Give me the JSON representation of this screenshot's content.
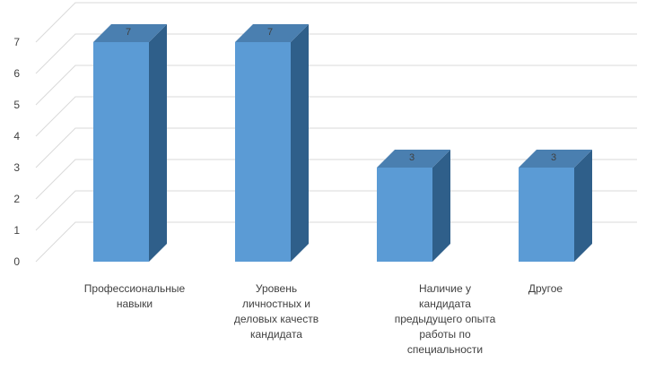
{
  "chart_data": {
    "type": "bar",
    "style": "3d-column",
    "categories": [
      [
        "Профессиональные",
        "навыки"
      ],
      [
        "Уровень",
        "личностных и",
        "деловых качеств",
        "кандидата"
      ],
      [
        "Наличие у",
        "кандидата",
        "предыдущего опыта",
        "работы по",
        "специальности"
      ],
      [
        "Другое"
      ]
    ],
    "values": [
      7,
      7,
      3,
      3
    ],
    "data_labels": [
      "7",
      "7",
      "3",
      "3"
    ],
    "ylim": [
      0,
      7
    ],
    "y_ticks": [
      "0",
      "1",
      "2",
      "3",
      "4",
      "5",
      "6",
      "7"
    ],
    "grid": true,
    "legend": "none",
    "colors": {
      "bar_front": "#5b9bd5",
      "bar_side": "#2f5f8a",
      "bar_top": "#4a7fb0",
      "gridline": "#d9d9d9",
      "text": "#404040"
    }
  }
}
